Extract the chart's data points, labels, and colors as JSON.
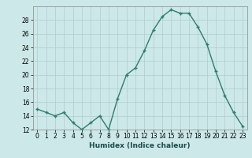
{
  "xlabel": "Humidex (Indice chaleur)",
  "x": [
    0,
    1,
    2,
    3,
    4,
    5,
    6,
    7,
    8,
    9,
    10,
    11,
    12,
    13,
    14,
    15,
    16,
    17,
    18,
    19,
    20,
    21,
    22,
    23
  ],
  "y": [
    15,
    14.5,
    14,
    14.5,
    13,
    12,
    13,
    14,
    12,
    16.5,
    20,
    21,
    23.5,
    26.5,
    28.5,
    29.5,
    29,
    29,
    27,
    24.5,
    20.5,
    17,
    14.5,
    12.5
  ],
  "line_color": "#2e7d6e",
  "bg_color": "#cce8e8",
  "grid_color": "#b0cccc",
  "ylim": [
    12,
    30
  ],
  "yticks": [
    12,
    14,
    16,
    18,
    20,
    22,
    24,
    26,
    28
  ],
  "xticks": [
    0,
    1,
    2,
    3,
    4,
    5,
    6,
    7,
    8,
    9,
    10,
    11,
    12,
    13,
    14,
    15,
    16,
    17,
    18,
    19,
    20,
    21,
    22,
    23
  ],
  "marker": "+",
  "markersize": 3.5,
  "linewidth": 1.0,
  "tick_fontsize": 5.5,
  "xlabel_fontsize": 6.5
}
